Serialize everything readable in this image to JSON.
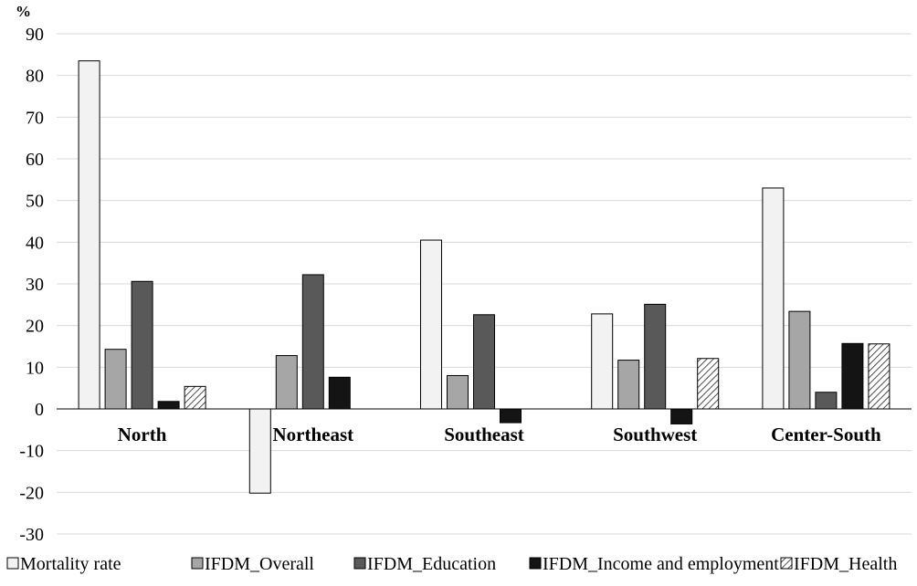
{
  "chart_data": {
    "type": "bar",
    "ylabel": "%",
    "ylim": [
      -30,
      90
    ],
    "yticks": [
      90,
      80,
      70,
      60,
      50,
      40,
      30,
      20,
      10,
      0,
      -10,
      -20,
      -30
    ],
    "grid": true,
    "legend_position": "bottom",
    "categories": [
      "North",
      "Northeast",
      "Southeast",
      "Southwest",
      "Center-South"
    ],
    "series": [
      {
        "name": "Mortality rate",
        "values": [
          83.5,
          -20.2,
          40.5,
          22.8,
          53.0
        ],
        "color": "#f2f2f2",
        "pattern": "none"
      },
      {
        "name": "IFDM_Overall",
        "values": [
          14.3,
          12.8,
          8.0,
          11.7,
          23.4
        ],
        "color": "#a6a6a6",
        "pattern": "none"
      },
      {
        "name": "IFDM_Education",
        "values": [
          30.6,
          32.2,
          22.6,
          25.1,
          4.0
        ],
        "color": "#595959",
        "pattern": "none"
      },
      {
        "name": "IFDM_Income and employment",
        "values": [
          1.8,
          7.6,
          -3.3,
          -3.6,
          15.7
        ],
        "color": "#141414",
        "pattern": "none"
      },
      {
        "name": "IFDM_Health",
        "values": [
          5.4,
          0,
          0,
          12.1,
          15.6
        ],
        "color": "#ffffff",
        "pattern": "diagonal-hatch"
      }
    ]
  }
}
